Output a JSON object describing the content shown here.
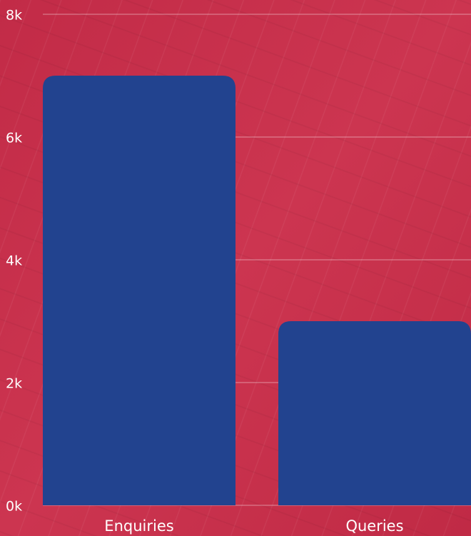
{
  "chart_data": {
    "type": "bar",
    "categories": [
      "Enquiries",
      "Queries"
    ],
    "values": [
      7000,
      3000
    ],
    "color": "#22438f",
    "ylim": [
      0,
      8000
    ],
    "yticks": [
      {
        "value": 0,
        "label": "0k"
      },
      {
        "value": 2000,
        "label": "2k"
      },
      {
        "value": 4000,
        "label": "4k"
      },
      {
        "value": 6000,
        "label": "6k"
      },
      {
        "value": 8000,
        "label": "8k"
      }
    ],
    "grid": true
  }
}
